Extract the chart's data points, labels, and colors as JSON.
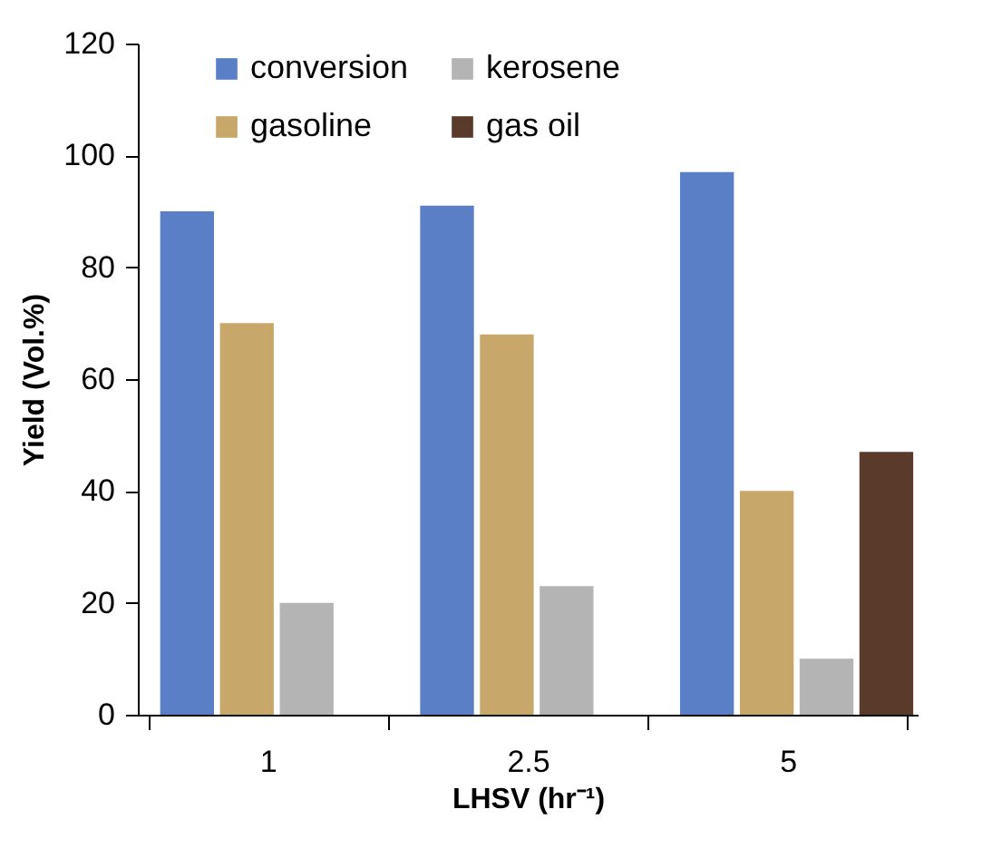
{
  "chart_data": {
    "type": "bar",
    "xlabel": "LHSV (hr⁻¹)",
    "ylabel": "Yield (Vol.%)",
    "categories": [
      "1",
      "2.5",
      "5"
    ],
    "series": [
      {
        "name": "conversion",
        "color": "#5b7fc7",
        "values": [
          90,
          91,
          97
        ]
      },
      {
        "name": "gasoline",
        "color": "#c8a86a",
        "values": [
          70,
          68,
          40
        ]
      },
      {
        "name": "kerosene",
        "color": "#b4b4b4",
        "values": [
          20,
          23,
          10
        ]
      },
      {
        "name": "gas oil",
        "color": "#5a3a2a",
        "values": [
          null,
          null,
          47
        ]
      }
    ],
    "ylim": [
      0,
      120
    ],
    "yticks": [
      0,
      20,
      40,
      60,
      80,
      100,
      120
    ],
    "grid": false,
    "legend": "top"
  }
}
